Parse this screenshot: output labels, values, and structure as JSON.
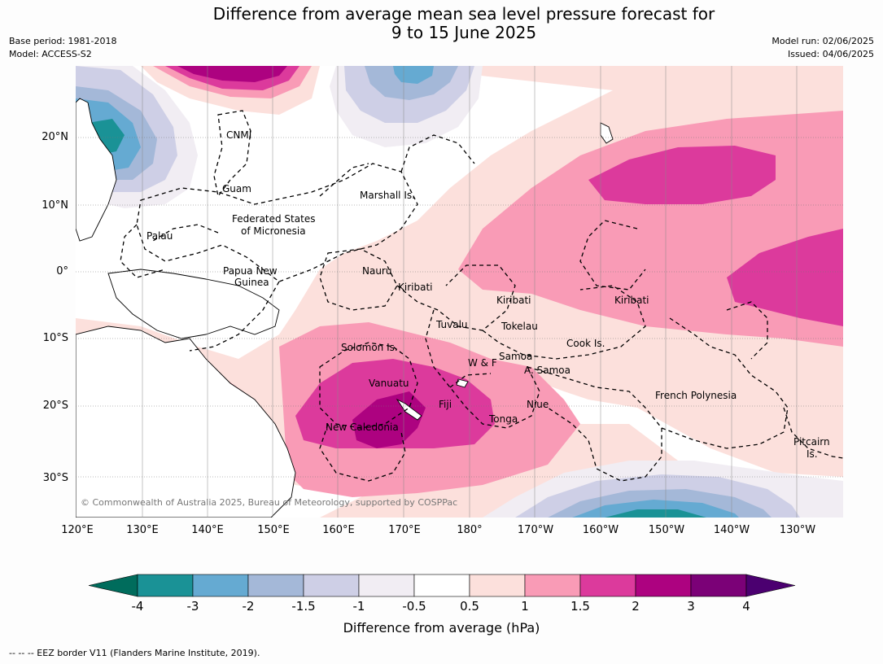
{
  "title_line1": "Difference from average mean sea level pressure forecast for",
  "title_line2": "9 to 15 June 2025",
  "meta_left": {
    "base_period": "Base period: 1981-2018",
    "model": "Model: ACCESS-S2"
  },
  "meta_right": {
    "model_run": "Model run: 02/06/2025",
    "issued": "Issued: 04/06/2025"
  },
  "lat_labels": [
    "20°N",
    "10°N",
    "0°",
    "10°S",
    "20°S",
    "30°S"
  ],
  "lon_labels": [
    "120°E",
    "130°E",
    "140°E",
    "150°E",
    "160°E",
    "170°E",
    "180°",
    "170°W",
    "160°W",
    "150°W",
    "140°W",
    "130°W"
  ],
  "region_labels": {
    "cnmi": "CNMI",
    "guam": "Guam",
    "marshall": "Marshall Is.",
    "fsm_1": "Federated States",
    "fsm_2": "of Micronesia",
    "palau": "Palau",
    "png_1": "Papua New",
    "png_2": "Guinea",
    "nauru": "Nauru",
    "kiribati_w": "Kiribati",
    "kiribati_c": "Kiribati",
    "kiribati_e": "Kiribati",
    "tuvalu": "Tuvalu",
    "tokelau": "Tokelau",
    "solomon": "Solomon Is.",
    "wf": "W & F",
    "samoa": "Samoa",
    "am_samoa": "A. Samoa",
    "cook": "Cook Is.",
    "vanuatu": "Vanuatu",
    "fiji": "Fiji",
    "niue": "Niue",
    "tonga": "Tonga",
    "new_caledonia": "New Caledonia",
    "french_polynesia": "French Polynesia",
    "pitcairn_1": "Pitcairn",
    "pitcairn_2": "Is."
  },
  "copyright": "© Commonwealth of Australia 2025, Bureau of Meteorology, supported by COSPPac",
  "colorbar": {
    "labels": [
      "-4",
      "-3",
      "-2",
      "-1.5",
      "-1",
      "-0.5",
      "0.5",
      "1",
      "1.5",
      "2",
      "3",
      "4"
    ],
    "colors": [
      "#1a9296",
      "#65aad2",
      "#a4b8d8",
      "#cecfe6",
      "#f1edf3",
      "#ffffff",
      "#fce0dc",
      "#f99bb6",
      "#dc3a9c",
      "#ad0280",
      "#7b0177"
    ],
    "under_color": "#006c5c",
    "over_color": "#4b0070",
    "title": "Difference from average (hPa)"
  },
  "footer": "--  --  -- EEZ border V11 (Flanders Marine Institute, 2019)."
}
